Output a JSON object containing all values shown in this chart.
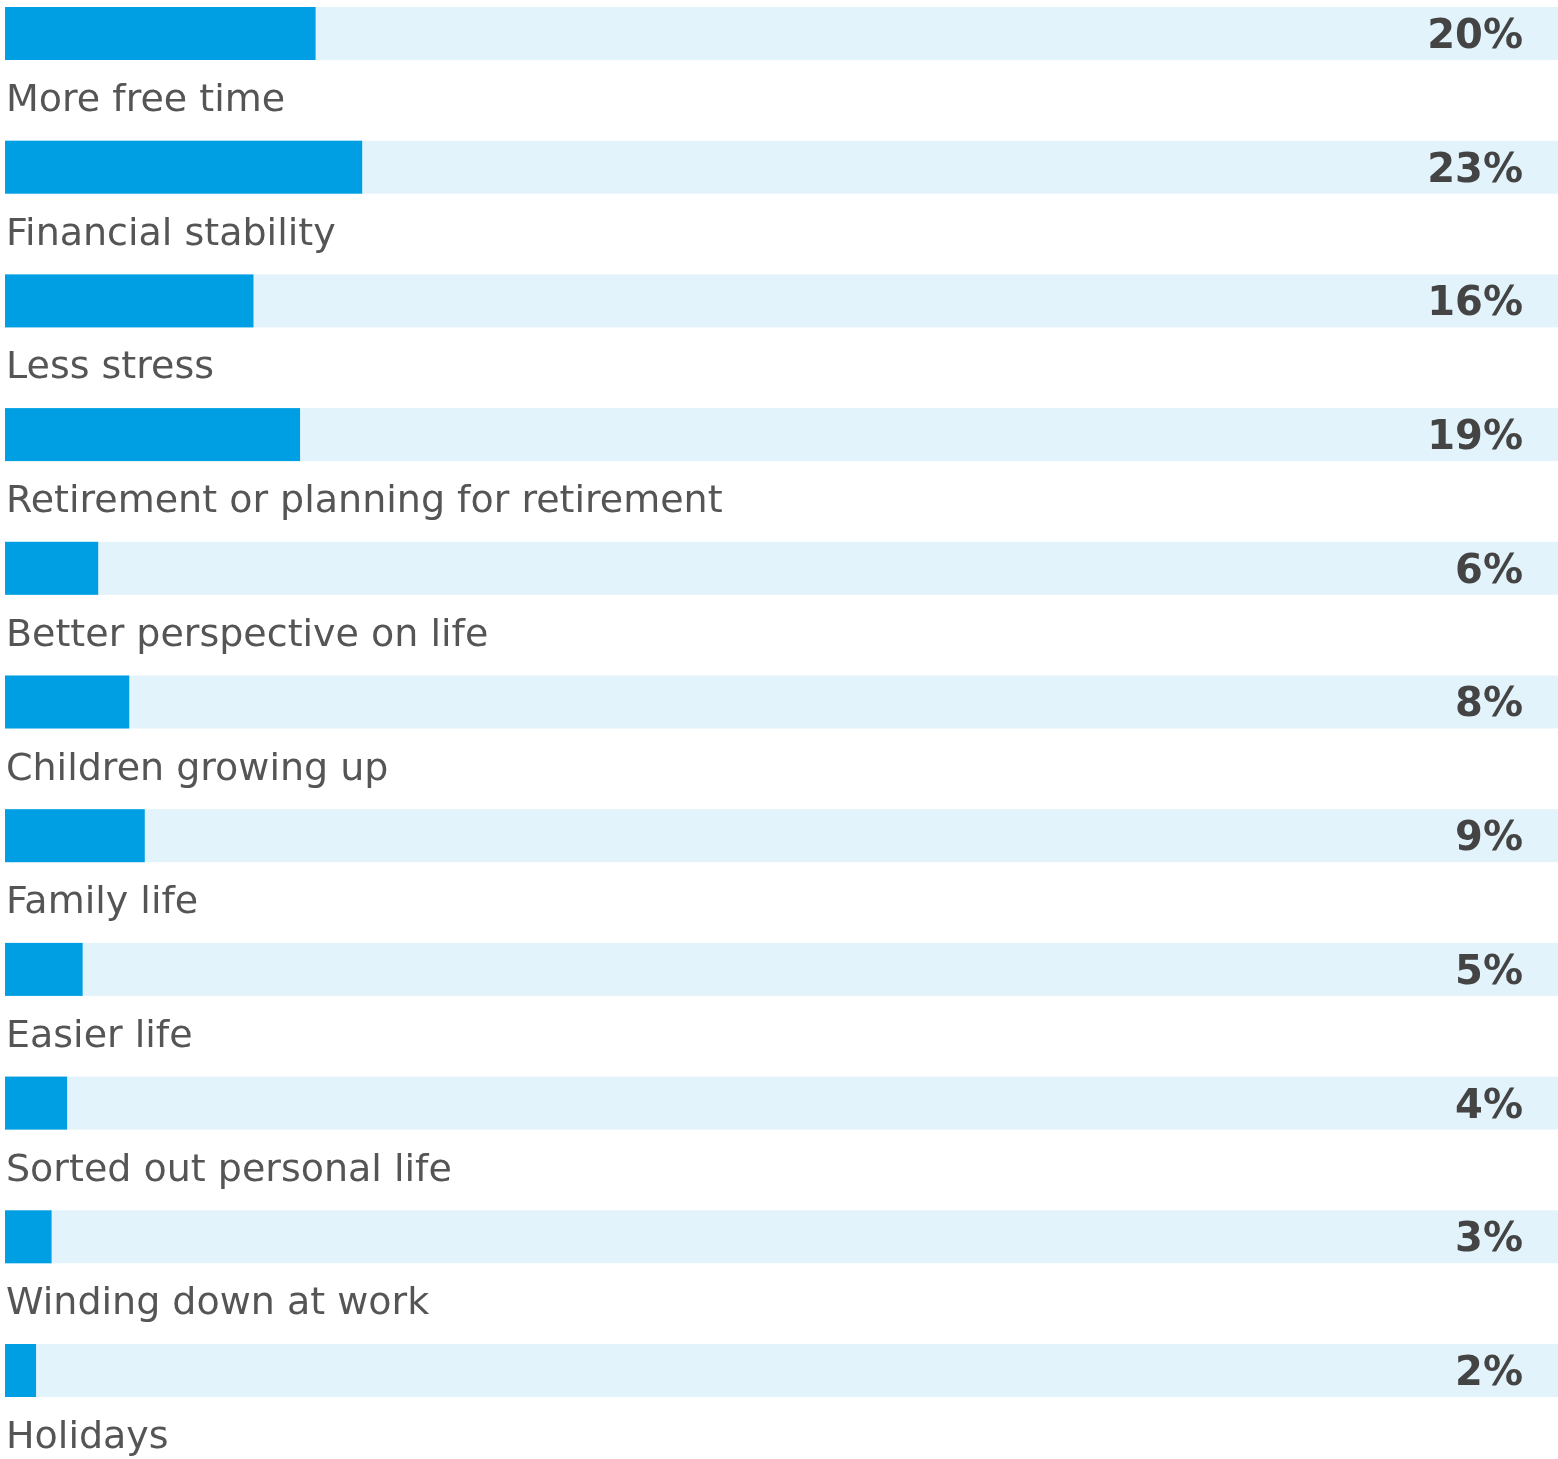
{
  "chart_data": {
    "type": "bar",
    "orientation": "horizontal",
    "categories": [
      "More free time",
      "Financial stability",
      "Less stress",
      "Retirement or planning for retirement",
      "Better perspective on life",
      "Children growing up",
      "Family life",
      "Easier life",
      "Sorted out personal life",
      "Winding down at work",
      "Holidays"
    ],
    "values": [
      20,
      23,
      16,
      19,
      6,
      8,
      9,
      5,
      4,
      3,
      2
    ],
    "value_labels": [
      "20%",
      "23%",
      "16%",
      "19%",
      "6%",
      "8%",
      "9%",
      "5%",
      "4%",
      "3%",
      "2%"
    ],
    "color": "#009fe3",
    "xlim": [
      0,
      100
    ]
  }
}
